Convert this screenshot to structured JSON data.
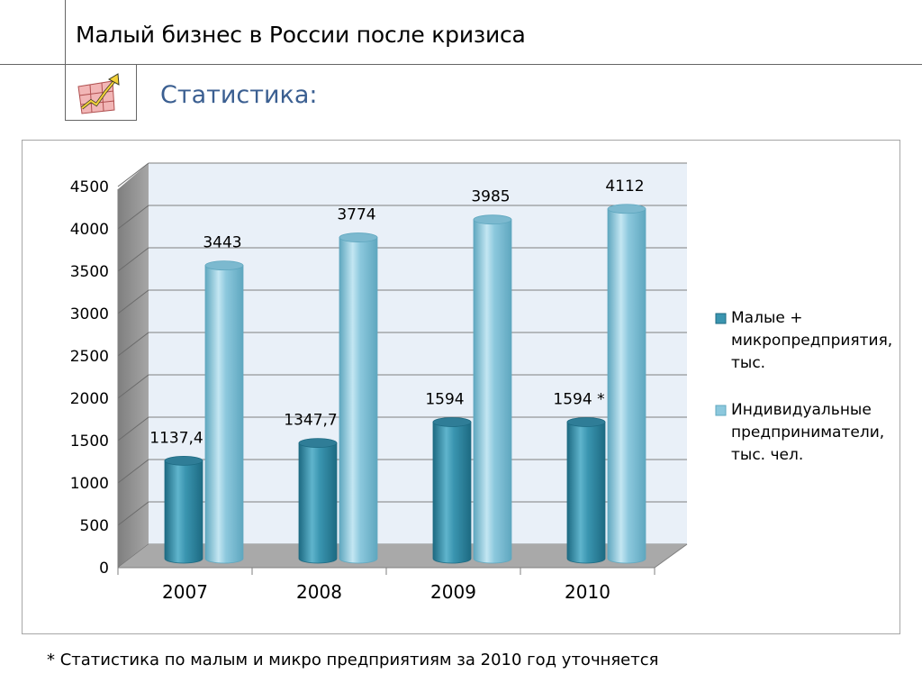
{
  "header": {
    "title": "Малый бизнес в России после кризиса",
    "subtitle": "Статистика:",
    "icon": "growth-chart-icon"
  },
  "footnote": "* Статистика по малым и микро  предприятиям за 2010 год уточняется",
  "chart_data": {
    "type": "bar",
    "style": "3d-cylinder",
    "categories": [
      "2007",
      "2008",
      "2009",
      "2010"
    ],
    "series": [
      {
        "name": "Малые + микропредприятия, тыс.",
        "values": [
          1137.4,
          1347.7,
          1594,
          1594
        ],
        "labels": [
          "1137,4",
          "1347,7",
          "1594",
          "1594 *"
        ],
        "color": "#3a95b0"
      },
      {
        "name": "Индивидуальные предприниматели, тыс. чел.",
        "values": [
          3443,
          3774,
          3985,
          4112
        ],
        "labels": [
          "3443",
          "3774",
          "3985",
          "4112"
        ],
        "color": "#8cc8dd"
      }
    ],
    "ylim": [
      0,
      4500
    ],
    "yticks": [
      "0",
      "500",
      "1000",
      "1500",
      "2000",
      "2500",
      "3000",
      "3500",
      "4000",
      "4500"
    ],
    "grid": true,
    "legend_position": "right",
    "legend_lines": [
      [
        "Малые +",
        "микропредприятия,",
        "тыс."
      ],
      [
        "Индивидуальные",
        "предприниматели,",
        "тыс. чел."
      ]
    ]
  }
}
